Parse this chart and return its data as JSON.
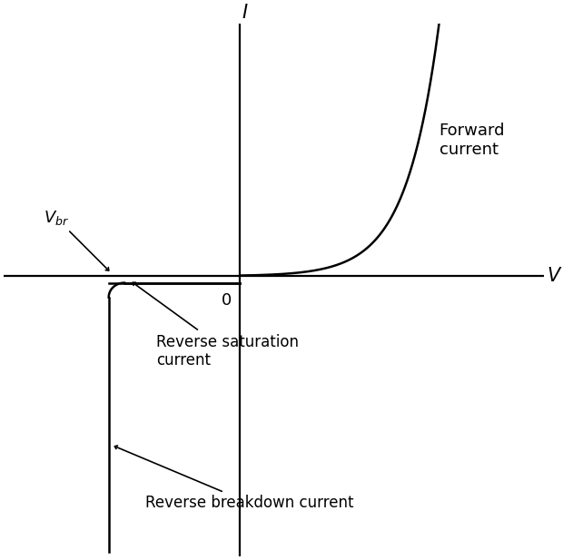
{
  "xlim": [
    -4.5,
    5.8
  ],
  "ylim": [
    -5.8,
    5.2
  ],
  "breakdown_voltage": -2.5,
  "saturation_current": -0.15,
  "curve_color": "#000000",
  "axis_color": "#000000",
  "background_color": "#ffffff",
  "label_I": "I",
  "label_V": "V",
  "label_0": "0",
  "label_forward": "Forward\ncurrent",
  "label_vbr": "$V_{br}$",
  "label_rev_sat": "Reverse saturation\ncurrent",
  "label_rev_break": "Reverse breakdown current",
  "fig_width": 6.2,
  "fig_height": 6.17,
  "dpi": 100
}
